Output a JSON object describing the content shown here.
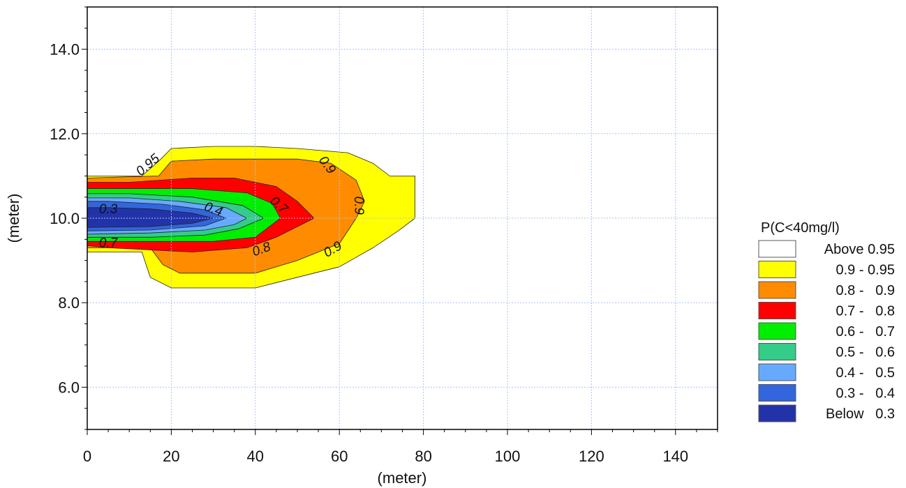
{
  "chart_data": {
    "type": "contour",
    "xlabel": "(meter)",
    "ylabel": "(meter)",
    "xlim": [
      0,
      150
    ],
    "ylim": [
      5,
      15
    ],
    "x_ticks": [
      "0",
      "20",
      "40",
      "60",
      "80",
      "100",
      "120",
      "140"
    ],
    "y_ticks": [
      "6.0",
      "8.0",
      "10.0",
      "12.0",
      "14.0"
    ],
    "grid": true,
    "legend_position": "right",
    "legend": {
      "title": "P(C<40mg/l)",
      "entries": [
        {
          "label": "Above 0.95",
          "color": "#ffffff"
        },
        {
          "label": "0.9 - 0.95",
          "color": "#ffff00"
        },
        {
          "label": "0.8 -   0.9",
          "color": "#ff8c00"
        },
        {
          "label": "0.7 -   0.8",
          "color": "#ff0000"
        },
        {
          "label": "0.6 -   0.7",
          "color": "#00ee00"
        },
        {
          "label": "0.5 -   0.6",
          "color": "#33cc88"
        },
        {
          "label": "0.4 -   0.5",
          "color": "#66aaff"
        },
        {
          "label": "0.3 -   0.4",
          "color": "#3366dd"
        },
        {
          "label": "Below   0.3",
          "color": "#2233aa"
        }
      ]
    },
    "regions": [
      {
        "level": "0.9 - 0.95",
        "color": "#ffff00",
        "points": [
          [
            0,
            9.2
          ],
          [
            13,
            9.2
          ],
          [
            15,
            8.6
          ],
          [
            20,
            8.35
          ],
          [
            40,
            8.35
          ],
          [
            50,
            8.6
          ],
          [
            60,
            8.85
          ],
          [
            68,
            9.3
          ],
          [
            74,
            9.7
          ],
          [
            78,
            10.0
          ],
          [
            78,
            11.0
          ],
          [
            72,
            11.0
          ],
          [
            68,
            11.3
          ],
          [
            62,
            11.55
          ],
          [
            50,
            11.65
          ],
          [
            40,
            11.7
          ],
          [
            30,
            11.7
          ],
          [
            20,
            11.65
          ],
          [
            17,
            11.35
          ],
          [
            13,
            11.0
          ],
          [
            0,
            11.0
          ]
        ]
      },
      {
        "level": "0.8 - 0.9",
        "color": "#ff8c00",
        "points": [
          [
            0,
            9.3
          ],
          [
            15,
            9.3
          ],
          [
            18,
            8.9
          ],
          [
            22,
            8.7
          ],
          [
            40,
            8.7
          ],
          [
            50,
            9.0
          ],
          [
            60,
            9.4
          ],
          [
            64,
            10.0
          ],
          [
            66,
            10.4
          ],
          [
            64,
            10.9
          ],
          [
            58,
            11.3
          ],
          [
            50,
            11.4
          ],
          [
            30,
            11.4
          ],
          [
            20,
            11.35
          ],
          [
            17,
            11.0
          ],
          [
            0,
            10.95
          ]
        ]
      },
      {
        "level": "0.7 - 0.8",
        "color": "#ff0000",
        "points": [
          [
            0,
            9.35
          ],
          [
            5,
            9.3
          ],
          [
            25,
            9.2
          ],
          [
            38,
            9.3
          ],
          [
            45,
            9.55
          ],
          [
            54,
            10.0
          ],
          [
            50,
            10.4
          ],
          [
            45,
            10.75
          ],
          [
            35,
            10.95
          ],
          [
            25,
            10.95
          ],
          [
            10,
            10.85
          ],
          [
            0,
            10.85
          ]
        ]
      },
      {
        "level": "0.6 - 0.7",
        "color": "#00ee00",
        "points": [
          [
            0,
            9.45
          ],
          [
            15,
            9.45
          ],
          [
            30,
            9.45
          ],
          [
            40,
            9.55
          ],
          [
            46,
            10.0
          ],
          [
            44,
            10.35
          ],
          [
            38,
            10.6
          ],
          [
            25,
            10.7
          ],
          [
            10,
            10.7
          ],
          [
            0,
            10.7
          ]
        ]
      },
      {
        "level": "0.5 - 0.6",
        "color": "#33cc88",
        "points": [
          [
            0,
            9.55
          ],
          [
            15,
            9.55
          ],
          [
            28,
            9.6
          ],
          [
            36,
            9.75
          ],
          [
            42,
            10.0
          ],
          [
            37,
            10.3
          ],
          [
            25,
            10.5
          ],
          [
            10,
            10.58
          ],
          [
            0,
            10.58
          ]
        ]
      },
      {
        "level": "0.4 - 0.5",
        "color": "#66aaff",
        "points": [
          [
            0,
            9.62
          ],
          [
            15,
            9.65
          ],
          [
            28,
            9.72
          ],
          [
            35,
            9.85
          ],
          [
            38,
            10.0
          ],
          [
            33,
            10.25
          ],
          [
            22,
            10.4
          ],
          [
            10,
            10.48
          ],
          [
            0,
            10.48
          ]
        ]
      },
      {
        "level": "0.3 - 0.4",
        "color": "#3366dd",
        "points": [
          [
            0,
            9.7
          ],
          [
            15,
            9.72
          ],
          [
            28,
            9.82
          ],
          [
            33,
            10.0
          ],
          [
            28,
            10.2
          ],
          [
            18,
            10.33
          ],
          [
            5,
            10.4
          ],
          [
            0,
            10.4
          ]
        ]
      },
      {
        "level": "Below 0.3",
        "color": "#2233aa",
        "points": [
          [
            0,
            9.78
          ],
          [
            15,
            9.8
          ],
          [
            25,
            9.88
          ],
          [
            30,
            10.0
          ],
          [
            25,
            10.12
          ],
          [
            15,
            10.22
          ],
          [
            5,
            10.25
          ],
          [
            0,
            10.25
          ]
        ]
      }
    ],
    "annotations": [
      {
        "text": "0.95",
        "x": 14.5,
        "y": 11.25,
        "angle": -40
      },
      {
        "text": "0.9",
        "x": 57,
        "y": 11.25,
        "angle": 52
      },
      {
        "text": "0.9",
        "x": 64.5,
        "y": 10.3,
        "angle": 88
      },
      {
        "text": "0.9",
        "x": 58.5,
        "y": 9.25,
        "angle": -30
      },
      {
        "text": "0.3",
        "x": 5,
        "y": 10.2,
        "angle": 0
      },
      {
        "text": "0.4",
        "x": 30,
        "y": 10.2,
        "angle": 20
      },
      {
        "text": "0.7",
        "x": 45.5,
        "y": 10.3,
        "angle": 42
      },
      {
        "text": "0.8",
        "x": 41.5,
        "y": 9.25,
        "angle": -20
      },
      {
        "text": "0.7",
        "x": 5,
        "y": 9.4,
        "angle": 0
      }
    ]
  }
}
